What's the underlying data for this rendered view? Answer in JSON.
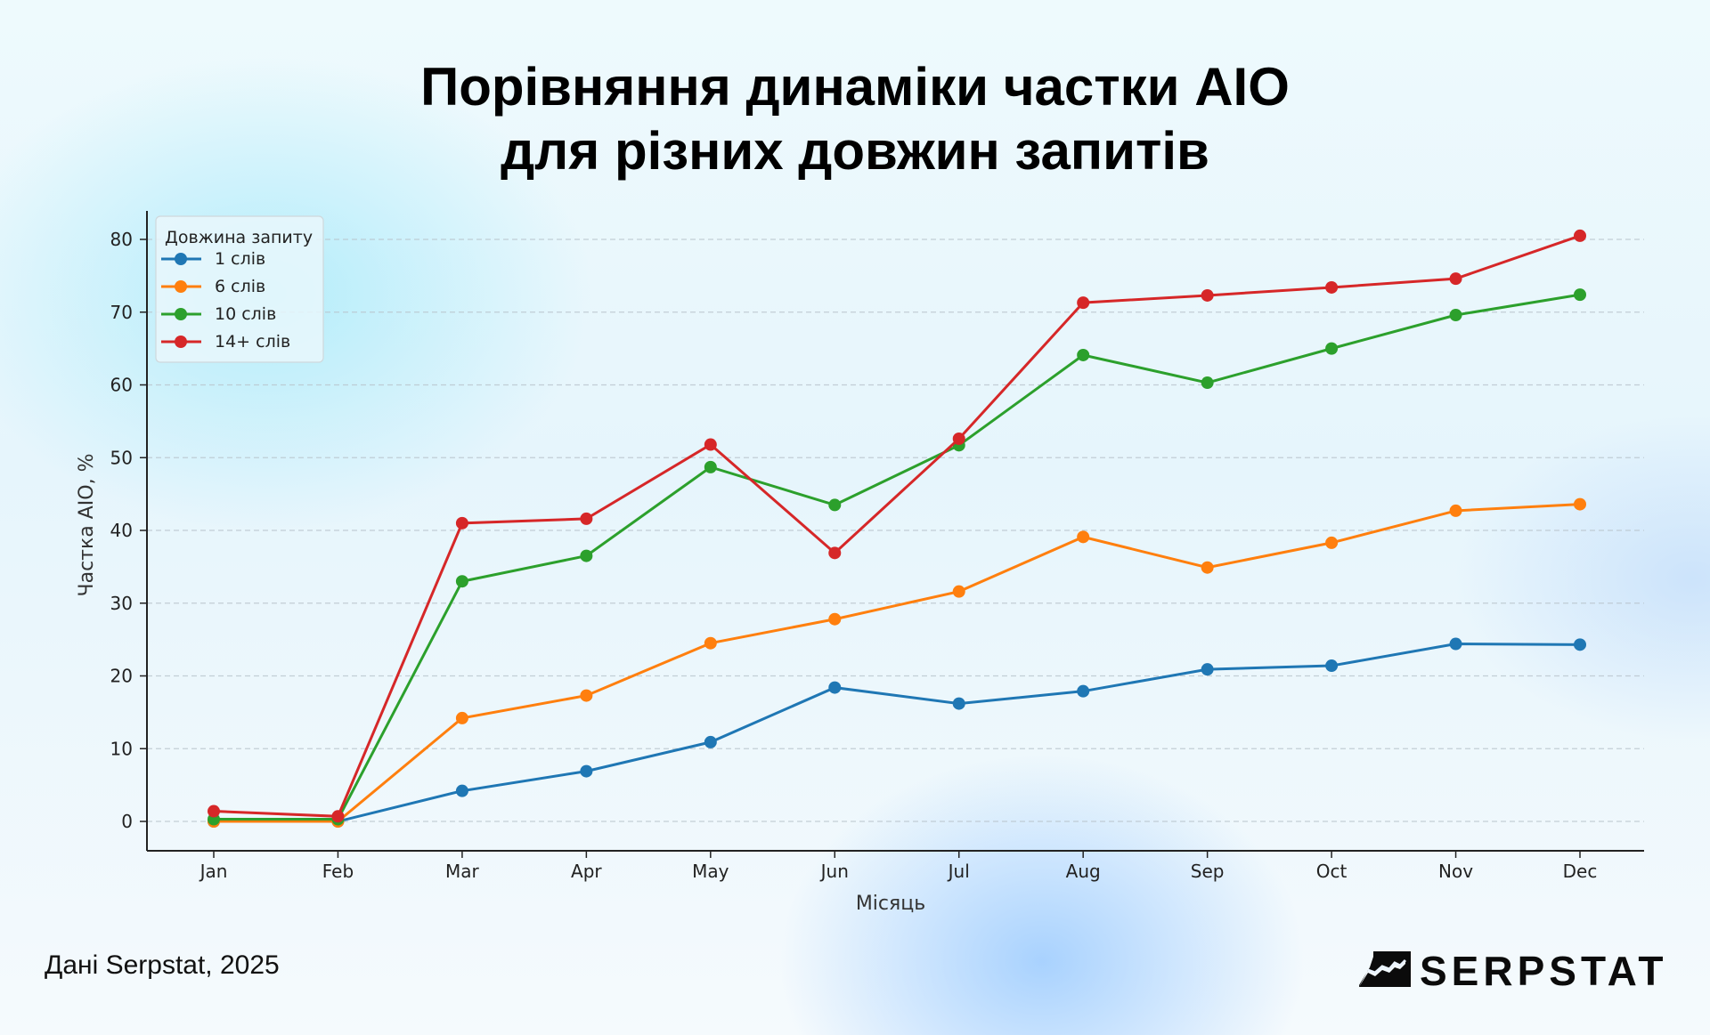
{
  "title": {
    "line1": "Порівняння динаміки частки AIO",
    "line2": "для різних довжин запитів"
  },
  "footer": {
    "source": "Дані Serpstat, 2025",
    "logo_text": "SERPSTAT",
    "logo_icon": "serpstat-chart-logo-icon"
  },
  "colors": {
    "1_word": "#1f77b4",
    "6_words": "#ff7f0e",
    "10_words": "#2ca02c",
    "14plus_words": "#d62728"
  },
  "chart_data": {
    "type": "line",
    "title": "Порівняння динаміки частки AIO для різних довжин запитів",
    "xlabel": "Місяць",
    "ylabel": "Частка AIO, %",
    "categories": [
      "Jan",
      "Feb",
      "Mar",
      "Apr",
      "May",
      "Jun",
      "Jul",
      "Aug",
      "Sep",
      "Oct",
      "Nov",
      "Dec"
    ],
    "yticks": [
      0,
      10,
      20,
      30,
      40,
      50,
      60,
      70,
      80
    ],
    "ylim": [
      -4,
      84
    ],
    "grid": "horizontal dashed",
    "legend_title": "Довжина запиту",
    "legend_position": "upper left",
    "series": [
      {
        "name": "1 слів",
        "color": "#1f77b4",
        "values": [
          0.0,
          0.0,
          4.2,
          6.9,
          10.9,
          18.4,
          16.2,
          17.9,
          20.9,
          21.4,
          24.4,
          24.3
        ]
      },
      {
        "name": "6 слів",
        "color": "#ff7f0e",
        "values": [
          0.0,
          0.0,
          14.2,
          17.3,
          24.5,
          27.8,
          31.6,
          39.1,
          34.9,
          38.3,
          42.7,
          43.6
        ]
      },
      {
        "name": "10 слів",
        "color": "#2ca02c",
        "values": [
          0.3,
          0.3,
          33.0,
          36.5,
          48.7,
          43.5,
          51.7,
          64.1,
          60.3,
          65.0,
          69.6,
          72.4
        ]
      },
      {
        "name": "14+ слів",
        "color": "#d62728",
        "values": [
          1.4,
          0.7,
          41.0,
          41.6,
          51.8,
          36.9,
          52.6,
          71.3,
          72.3,
          73.4,
          74.6,
          80.5
        ]
      }
    ]
  }
}
